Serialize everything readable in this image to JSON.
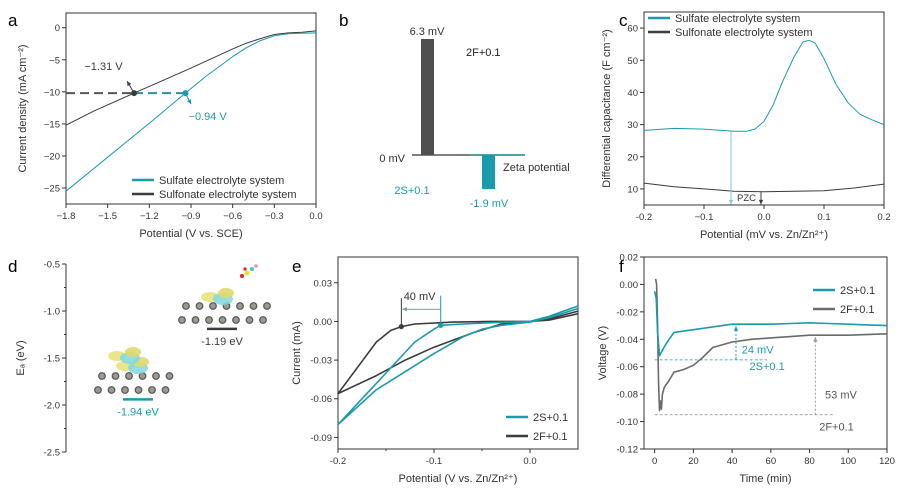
{
  "panel_labels": [
    "a",
    "b",
    "c",
    "d",
    "e",
    "f"
  ],
  "colors": {
    "teal": "#1a9bab",
    "dark": "#4a4a4a",
    "gray": "#6e6e6e"
  },
  "chart_data": [
    {
      "panel": "a",
      "type": "line",
      "xlabel": "Potential (V vs. SCE)",
      "ylabel": "Current density (mA cm⁻²)",
      "xlim": [
        -1.8,
        0
      ],
      "ylim": [
        -27.5,
        2.3
      ],
      "xticks": [
        -1.8,
        -1.5,
        -1.2,
        -0.9,
        -0.6,
        -0.3,
        0
      ],
      "xtick_labels": [
        "−1.8",
        "−1.5",
        "−1.2",
        "−0.9",
        "−0.6",
        "−0.3",
        "0.0"
      ],
      "yticks": [
        0,
        -5,
        -10,
        -15,
        -20,
        -25
      ],
      "ytick_labels": [
        "0",
        "−5",
        "−10",
        "−15",
        "−20",
        "−25"
      ],
      "legend": "bottom-right",
      "series": [
        {
          "name": "Sulfate electrolyte system",
          "color": "#1a9bab",
          "x": [
            -1.8,
            -1.5,
            -1.2,
            -0.94,
            -0.8,
            -0.6,
            -0.5,
            -0.4,
            -0.3,
            -0.2,
            -0.1,
            0
          ],
          "y": [
            -25.5,
            -20.2,
            -14.9,
            -10.2,
            -7.7,
            -4.5,
            -3.1,
            -2.0,
            -1.25,
            -0.95,
            -0.85,
            -0.8
          ]
        },
        {
          "name": "Sulfonate electrolyte system",
          "color": "#3c3c3c",
          "x": [
            -1.8,
            -1.6,
            -1.31,
            -1.1,
            -0.9,
            -0.7,
            -0.6,
            -0.5,
            -0.4,
            -0.3,
            -0.2,
            -0.1,
            0
          ],
          "y": [
            -15.2,
            -13.0,
            -10.2,
            -8.2,
            -6.3,
            -4.3,
            -3.3,
            -2.4,
            -1.7,
            -1.05,
            -0.8,
            -0.7,
            -0.5
          ]
        }
      ],
      "annotations": [
        {
          "text": "−1.31 V",
          "x": -1.31,
          "y": -10.2,
          "color": "#3c3c3c"
        },
        {
          "text": "−0.94 V",
          "x": -0.94,
          "y": -10.2,
          "color": "#1a9bab"
        }
      ]
    },
    {
      "panel": "b",
      "type": "bar",
      "title": "Zeta potential",
      "categories": [
        "2F+0.1",
        "2S+0.1"
      ],
      "values": [
        6.3,
        -1.9
      ],
      "value_labels": [
        "6.3 mV",
        "-1.9 mV"
      ],
      "baseline_label": "0 mV",
      "colors": [
        "#505050",
        "#1a9bab"
      ]
    },
    {
      "panel": "c",
      "type": "line",
      "xlabel": "Potential (mV vs. Zn/Zn²⁺)",
      "ylabel": "Differential capacitance (F cm⁻²)",
      "xlim": [
        -0.2,
        0.2
      ],
      "ylim": [
        5,
        65
      ],
      "xticks": [
        -0.2,
        -0.1,
        0,
        0.1,
        0.2
      ],
      "xtick_labels": [
        "-0.2",
        "−0.1",
        "0.0",
        "0.1",
        "0.2"
      ],
      "yticks": [
        10,
        20,
        30,
        40,
        50,
        60
      ],
      "ytick_labels": [
        "10",
        "20",
        "30",
        "40",
        "50",
        "60"
      ],
      "legend": "top-left",
      "series": [
        {
          "name": "Sulfate electrolyte system",
          "color": "#1a9bab",
          "x": [
            -0.2,
            -0.15,
            -0.1,
            -0.05,
            -0.03,
            -0.015,
            0,
            0.015,
            0.03,
            0.05,
            0.065,
            0.075,
            0.085,
            0.1,
            0.12,
            0.14,
            0.16,
            0.18,
            0.2
          ],
          "y": [
            28.2,
            28.8,
            28.6,
            27.9,
            27.9,
            28.6,
            31,
            36,
            43,
            51,
            55.7,
            56.2,
            55.4,
            50.5,
            42.5,
            36.8,
            33.2,
            31.5,
            30
          ]
        },
        {
          "name": "Sulfonate electrolyte system",
          "color": "#3c3c3c",
          "x": [
            -0.2,
            -0.15,
            -0.1,
            -0.05,
            0,
            0.05,
            0.1,
            0.15,
            0.2
          ],
          "y": [
            11.8,
            10.7,
            10.0,
            9.3,
            9.1,
            9.3,
            9.4,
            10.3,
            11.5
          ]
        }
      ],
      "pzc": {
        "label": "PZC",
        "sulfate_x": -0.055,
        "sulfonate_x": -0.005
      }
    },
    {
      "panel": "d",
      "type": "energy-level",
      "ylabel": "Eₐ (eV)",
      "ylim": [
        -2.5,
        -0.5
      ],
      "yticks": [
        -0.5,
        -1.0,
        -1.5,
        -2.0,
        -2.5
      ],
      "ytick_labels": [
        "-0.5",
        "-1.0",
        "-1.5",
        "-2.0",
        "-2.5"
      ],
      "levels": [
        {
          "value": -1.19,
          "label": "-1.19 eV",
          "color": "#3c3c3c"
        },
        {
          "value": -1.94,
          "label": "-1.94 eV",
          "color": "#1a9bab"
        }
      ]
    },
    {
      "panel": "e",
      "type": "line",
      "xlabel": "Potential (V vs. Zn/Zn²⁺)",
      "ylabel": "Current (mA)",
      "xlim": [
        -0.2,
        0.05
      ],
      "ylim": [
        -0.099,
        0.05
      ],
      "xticks": [
        -0.2,
        -0.1,
        0
      ],
      "xtick_labels": [
        "-0.2",
        "-0.1",
        "0.0"
      ],
      "yticks": [
        0.03,
        0,
        -0.03,
        -0.06,
        -0.09
      ],
      "ytick_labels": [
        "0.03",
        "0.00",
        "-0.03",
        "-0.06",
        "-0.09"
      ],
      "legend": "bottom-right",
      "series": [
        {
          "name": "2S+0.1",
          "color": "#1a9bab",
          "x": [
            0.05,
            0.02,
            0,
            -0.03,
            -0.05,
            -0.07,
            -0.1,
            -0.13,
            -0.16,
            -0.2,
            -0.18,
            -0.15,
            -0.12,
            -0.1,
            -0.093,
            -0.07,
            -0.04,
            0,
            0.02,
            0.05
          ],
          "y": [
            0.01,
            0.003,
            -0.0005,
            -0.003,
            -0.006,
            -0.012,
            -0.025,
            -0.039,
            -0.053,
            -0.08,
            -0.064,
            -0.04,
            -0.016,
            -0.006,
            -0.003,
            -0.002,
            -0.001,
            0,
            0.004,
            0.012
          ]
        },
        {
          "name": "2F+0.1",
          "color": "#3c3c3c",
          "x": [
            0.05,
            0.02,
            0,
            -0.03,
            -0.06,
            -0.1,
            -0.13,
            -0.16,
            -0.2,
            -0.18,
            -0.16,
            -0.145,
            -0.134,
            -0.12,
            -0.08,
            -0.04,
            0,
            0.02,
            0.05
          ],
          "y": [
            0.006,
            0.001,
            0,
            -0.002,
            -0.009,
            -0.02,
            -0.03,
            -0.042,
            -0.056,
            -0.036,
            -0.016,
            -0.007,
            -0.004,
            -0.002,
            -0.0005,
            0,
            0,
            0.002,
            0.008
          ]
        }
      ],
      "annotation": {
        "text": "40 mV",
        "x_from": -0.093,
        "x_to": -0.134
      }
    },
    {
      "panel": "f",
      "type": "line",
      "xlabel": "Time (min)",
      "ylabel": "Voltage (V)",
      "xlim": [
        -5.5,
        120
      ],
      "ylim": [
        -0.12,
        0.02
      ],
      "xticks": [
        0,
        20,
        40,
        60,
        80,
        100,
        120
      ],
      "xtick_labels": [
        "0",
        "20",
        "40",
        "60",
        "80",
        "100",
        "120"
      ],
      "yticks": [
        0.02,
        0,
        -0.02,
        -0.04,
        -0.06,
        -0.08,
        -0.1,
        -0.12
      ],
      "ytick_labels": [
        "0.02",
        "0.00",
        "-0.02",
        "-0.04",
        "-0.06",
        "-0.08",
        "-0.10",
        "-0.12"
      ],
      "legend": "top-right",
      "series": [
        {
          "name": "2S+0.1",
          "color": "#1a9bab",
          "x": [
            0,
            0.8,
            1.5,
            2.5,
            4,
            6,
            8,
            10,
            15,
            20,
            30,
            40,
            50,
            60,
            70,
            80,
            90,
            100,
            110,
            120
          ],
          "y": [
            -0.005,
            -0.01,
            -0.035,
            -0.052,
            -0.048,
            -0.043,
            -0.039,
            -0.035,
            -0.034,
            -0.033,
            -0.031,
            -0.029,
            -0.029,
            -0.029,
            -0.0285,
            -0.028,
            -0.0285,
            -0.029,
            -0.0295,
            -0.03
          ]
        },
        {
          "name": "2F+0.1",
          "color": "#6a6a6a",
          "x": [
            0.5,
            1,
            1.5,
            2,
            2.5,
            3,
            3.5,
            4,
            5,
            7,
            10,
            15,
            20,
            25,
            30,
            40,
            50,
            60,
            80,
            100,
            120
          ],
          "y": [
            0.004,
            0,
            -0.03,
            -0.07,
            -0.092,
            -0.085,
            -0.091,
            -0.08,
            -0.075,
            -0.071,
            -0.064,
            -0.062,
            -0.059,
            -0.053,
            -0.046,
            -0.042,
            -0.04,
            -0.039,
            -0.037,
            -0.037,
            -0.036
          ]
        }
      ],
      "annotations": [
        {
          "text": "24 mV",
          "color": "#1a9bab"
        },
        {
          "text": "2S+0.1",
          "color": "#1a9bab"
        },
        {
          "text": "53 mV",
          "color": "#555"
        },
        {
          "text": "2F+0.1",
          "color": "#555"
        }
      ]
    }
  ]
}
